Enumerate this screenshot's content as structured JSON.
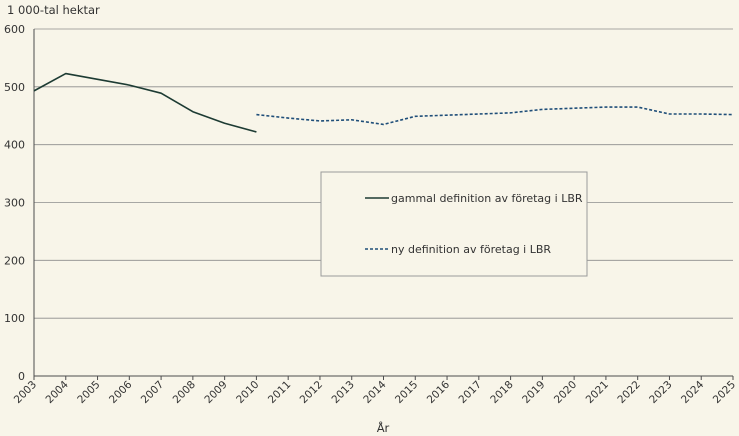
{
  "chart_data": {
    "type": "line",
    "title": "",
    "ylabel": "1 000-tal hektar",
    "xlabel": "År",
    "ylim": [
      0,
      600
    ],
    "yticks": [
      0,
      100,
      200,
      300,
      400,
      500,
      600
    ],
    "grid": true,
    "categories": [
      "2003",
      "2004",
      "2005",
      "2006",
      "2007",
      "2008",
      "2009",
      "2010",
      "2011",
      "2012",
      "2013",
      "2014",
      "2015",
      "2016",
      "2017",
      "2018",
      "2019",
      "2020",
      "2021",
      "2022",
      "2023",
      "2024",
      "2025"
    ],
    "series": [
      {
        "name": "gammal definition av företag i LBR",
        "style": "solid",
        "color": "#1d3b33",
        "values": [
          493,
          523,
          513,
          503,
          489,
          457,
          437,
          422,
          null,
          null,
          null,
          null,
          null,
          null,
          null,
          null,
          null,
          null,
          null,
          null,
          null,
          null,
          null
        ]
      },
      {
        "name": "ny definition av företag i LBR",
        "style": "dashed",
        "color": "#1f4e79",
        "values": [
          null,
          null,
          null,
          null,
          null,
          null,
          null,
          452,
          446,
          441,
          443,
          435,
          449,
          451,
          453,
          455,
          461,
          463,
          465,
          465,
          453,
          453,
          452
        ]
      }
    ],
    "legend_position": "center-right"
  }
}
